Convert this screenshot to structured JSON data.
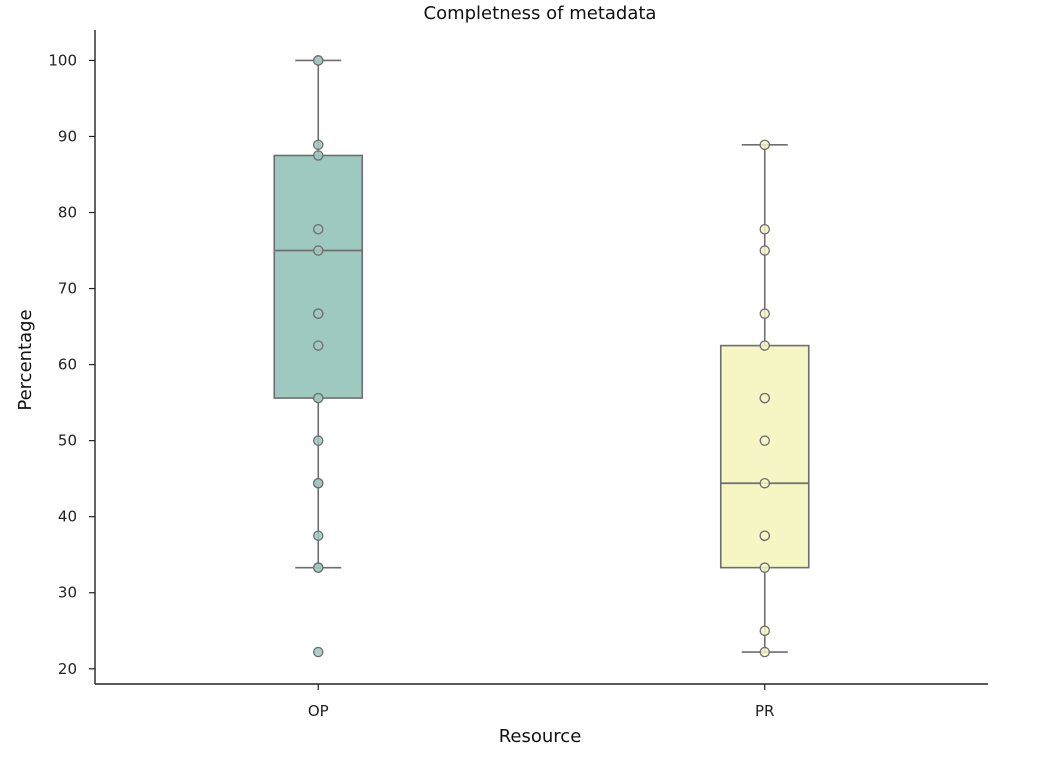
{
  "chart_data": {
    "type": "box",
    "title": "Completness of metadata",
    "xlabel": "Resource",
    "ylabel": "Percentage",
    "categories": [
      "OP",
      "PR"
    ],
    "ylim": [
      18,
      104
    ],
    "yticks": [
      20,
      30,
      40,
      50,
      60,
      70,
      80,
      90,
      100
    ],
    "grid": false,
    "boxes": [
      {
        "category": "OP",
        "color": "#9dc9c1",
        "whisker_low": 33.3,
        "q1": 55.6,
        "median": 75,
        "q3": 87.5,
        "whisker_high": 100,
        "points": [
          100,
          100,
          88.9,
          87.5,
          77.8,
          75,
          66.7,
          66.7,
          62.5,
          55.6,
          55.6,
          50,
          44.4,
          44.4,
          37.5,
          33.3,
          33.3,
          22.2
        ]
      },
      {
        "category": "PR",
        "color": "#f6f6c5",
        "whisker_low": 22.2,
        "q1": 33.3,
        "median": 44.4,
        "q3": 62.5,
        "whisker_high": 88.9,
        "points": [
          88.9,
          77.8,
          75,
          66.7,
          62.5,
          55.6,
          55.6,
          50,
          44.4,
          37.5,
          37.5,
          33.3,
          25,
          22.2
        ]
      }
    ]
  }
}
